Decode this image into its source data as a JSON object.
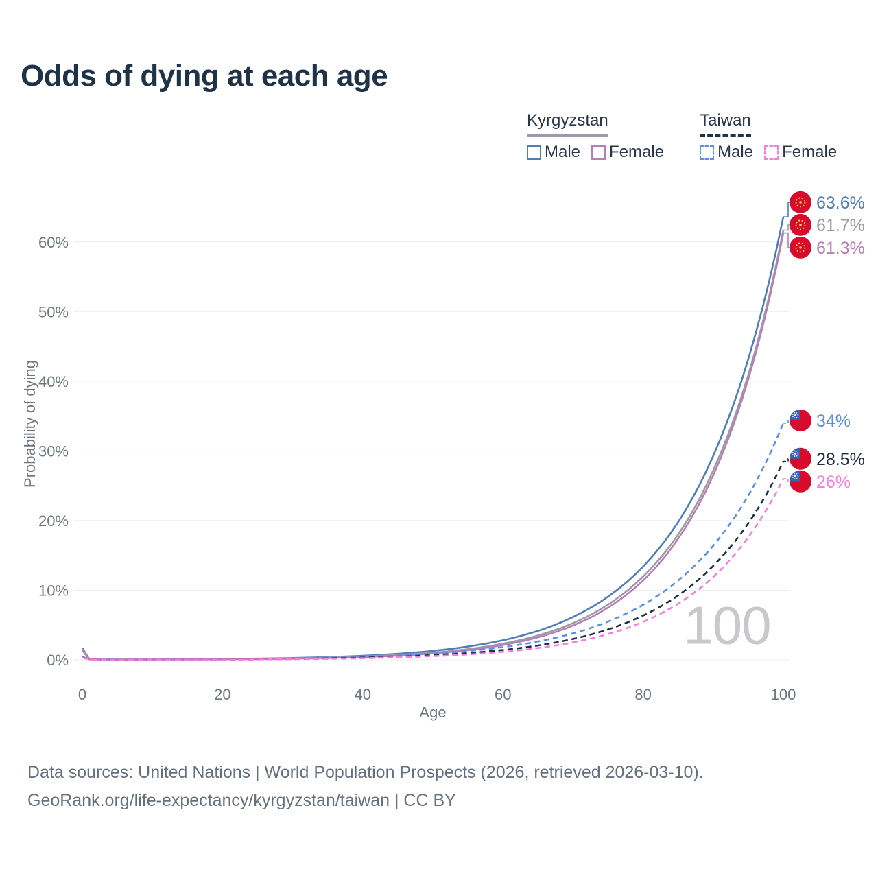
{
  "title": "Odds of dying at each age",
  "legend": {
    "groups": [
      {
        "country": "Kyrgyzstan",
        "line_style": "solid",
        "underline_color": "#9b9ba3",
        "items": [
          {
            "label": "Male",
            "color": "#4f7cba"
          },
          {
            "label": "Female",
            "color": "#b77fb8"
          }
        ]
      },
      {
        "country": "Taiwan",
        "line_style": "dashed",
        "underline_color": "#1e3248",
        "items": [
          {
            "label": "Male",
            "color": "#5a8ee8"
          },
          {
            "label": "Female",
            "color": "#f97ce0"
          }
        ]
      }
    ]
  },
  "chart_data": {
    "type": "line",
    "title": "Odds of dying at each age",
    "xlabel": "Age",
    "ylabel": "Probability of dying",
    "xlim": [
      0,
      100
    ],
    "ylim_percent": [
      0,
      66
    ],
    "grid": "horizontal",
    "xticks": [
      0,
      20,
      40,
      60,
      80,
      100
    ],
    "yticks": [
      "0%",
      "10%",
      "20%",
      "30%",
      "40%",
      "50%",
      "60%"
    ],
    "age_watermark": "100",
    "flag_colors": {
      "red": "#d80b2c",
      "canton_blue": "#3a5eb5",
      "sun_yellow": "#ffd84d"
    },
    "series": [
      {
        "id": "kyrgyzstan-male",
        "country": "Kyrgyzstan",
        "sex": "male",
        "color": "#4f7cba",
        "dashed": false,
        "end_label": "63.6%",
        "flag": "kyrgyzstan",
        "points": [
          [
            0,
            1.7
          ],
          [
            1,
            0.09
          ],
          [
            5,
            0.05
          ],
          [
            10,
            0.06
          ],
          [
            15,
            0.09
          ],
          [
            20,
            0.13
          ],
          [
            25,
            0.18
          ],
          [
            30,
            0.27
          ],
          [
            35,
            0.4
          ],
          [
            40,
            0.59
          ],
          [
            45,
            0.87
          ],
          [
            50,
            1.29
          ],
          [
            55,
            1.91
          ],
          [
            60,
            2.82
          ],
          [
            65,
            4.16
          ],
          [
            70,
            6.15
          ],
          [
            75,
            9.08
          ],
          [
            80,
            13.4
          ],
          [
            85,
            19.8
          ],
          [
            90,
            29.3
          ],
          [
            95,
            43.2
          ],
          [
            100,
            63.6
          ]
        ]
      },
      {
        "id": "kyrgyzstan-both",
        "country": "Kyrgyzstan",
        "sex": "both",
        "color": "#9b9ba3",
        "dashed": false,
        "end_label": "61.7%",
        "flag": "kyrgyzstan",
        "points": [
          [
            0,
            1.55
          ],
          [
            1,
            0.08
          ],
          [
            5,
            0.04
          ],
          [
            10,
            0.05
          ],
          [
            15,
            0.07
          ],
          [
            20,
            0.1
          ],
          [
            25,
            0.15
          ],
          [
            30,
            0.22
          ],
          [
            35,
            0.33
          ],
          [
            40,
            0.49
          ],
          [
            45,
            0.7
          ],
          [
            50,
            1.02
          ],
          [
            55,
            1.54
          ],
          [
            60,
            2.32
          ],
          [
            65,
            3.5
          ],
          [
            70,
            5.27
          ],
          [
            75,
            7.94
          ],
          [
            80,
            11.97
          ],
          [
            85,
            18.0
          ],
          [
            90,
            27.2
          ],
          [
            95,
            40.9
          ],
          [
            100,
            61.7
          ]
        ]
      },
      {
        "id": "kyrgyzstan-female",
        "country": "Kyrgyzstan",
        "sex": "female",
        "color": "#b77fb8",
        "dashed": false,
        "end_label": "61.3%",
        "flag": "kyrgyzstan",
        "points": [
          [
            0,
            1.4
          ],
          [
            1,
            0.07
          ],
          [
            5,
            0.03
          ],
          [
            10,
            0.04
          ],
          [
            15,
            0.05
          ],
          [
            20,
            0.08
          ],
          [
            25,
            0.11
          ],
          [
            30,
            0.17
          ],
          [
            35,
            0.26
          ],
          [
            40,
            0.4
          ],
          [
            45,
            0.6
          ],
          [
            50,
            0.92
          ],
          [
            55,
            1.4
          ],
          [
            60,
            2.13
          ],
          [
            65,
            3.24
          ],
          [
            70,
            4.93
          ],
          [
            75,
            7.51
          ],
          [
            80,
            11.4
          ],
          [
            85,
            17.4
          ],
          [
            90,
            26.5
          ],
          [
            95,
            40.3
          ],
          [
            100,
            61.3
          ]
        ]
      },
      {
        "id": "taiwan-male",
        "country": "Taiwan",
        "sex": "male",
        "color": "#5a8ee8",
        "dashed": true,
        "end_label": "34%",
        "flag": "taiwan",
        "points": [
          [
            0,
            0.45
          ],
          [
            1,
            0.04
          ],
          [
            5,
            0.02
          ],
          [
            10,
            0.03
          ],
          [
            15,
            0.05
          ],
          [
            20,
            0.07
          ],
          [
            25,
            0.1
          ],
          [
            30,
            0.15
          ],
          [
            35,
            0.3
          ],
          [
            40,
            0.43
          ],
          [
            45,
            0.61
          ],
          [
            50,
            0.88
          ],
          [
            55,
            1.27
          ],
          [
            60,
            1.83
          ],
          [
            65,
            2.64
          ],
          [
            70,
            3.8
          ],
          [
            75,
            5.5
          ],
          [
            80,
            7.9
          ],
          [
            85,
            11.4
          ],
          [
            90,
            16.4
          ],
          [
            95,
            23.6
          ],
          [
            100,
            34
          ]
        ]
      },
      {
        "id": "taiwan-both",
        "country": "Taiwan",
        "sex": "both",
        "color": "#1f2f47",
        "dashed": true,
        "end_label": "28.5%",
        "flag": "taiwan",
        "points": [
          [
            0,
            0.4
          ],
          [
            1,
            0.03
          ],
          [
            5,
            0.02
          ],
          [
            10,
            0.02
          ],
          [
            15,
            0.04
          ],
          [
            20,
            0.05
          ],
          [
            25,
            0.08
          ],
          [
            30,
            0.12
          ],
          [
            35,
            0.2
          ],
          [
            40,
            0.32
          ],
          [
            45,
            0.46
          ],
          [
            50,
            0.67
          ],
          [
            55,
            0.98
          ],
          [
            60,
            1.42
          ],
          [
            65,
            2.06
          ],
          [
            70,
            3.0
          ],
          [
            75,
            4.37
          ],
          [
            80,
            6.36
          ],
          [
            85,
            9.25
          ],
          [
            90,
            13.5
          ],
          [
            95,
            19.6
          ],
          [
            100,
            28.5
          ]
        ]
      },
      {
        "id": "taiwan-female",
        "country": "Taiwan",
        "sex": "female",
        "color": "#f97ce0",
        "dashed": true,
        "end_label": "26%",
        "flag": "taiwan",
        "points": [
          [
            0,
            0.35
          ],
          [
            1,
            0.03
          ],
          [
            5,
            0.01
          ],
          [
            10,
            0.02
          ],
          [
            15,
            0.03
          ],
          [
            20,
            0.04
          ],
          [
            25,
            0.06
          ],
          [
            30,
            0.09
          ],
          [
            35,
            0.15
          ],
          [
            40,
            0.24
          ],
          [
            45,
            0.36
          ],
          [
            50,
            0.53
          ],
          [
            55,
            0.77
          ],
          [
            60,
            1.15
          ],
          [
            65,
            1.7
          ],
          [
            70,
            2.5
          ],
          [
            75,
            3.7
          ],
          [
            80,
            5.46
          ],
          [
            85,
            8.07
          ],
          [
            90,
            11.9
          ],
          [
            95,
            17.6
          ],
          [
            100,
            26
          ]
        ]
      }
    ]
  },
  "footer": {
    "line1": "Data sources: United Nations | World Population Prospects (2026, retrieved 2026-03-10).",
    "line2": "GeoRank.org/life-expectancy/kyrgyzstan/taiwan | CC BY"
  }
}
